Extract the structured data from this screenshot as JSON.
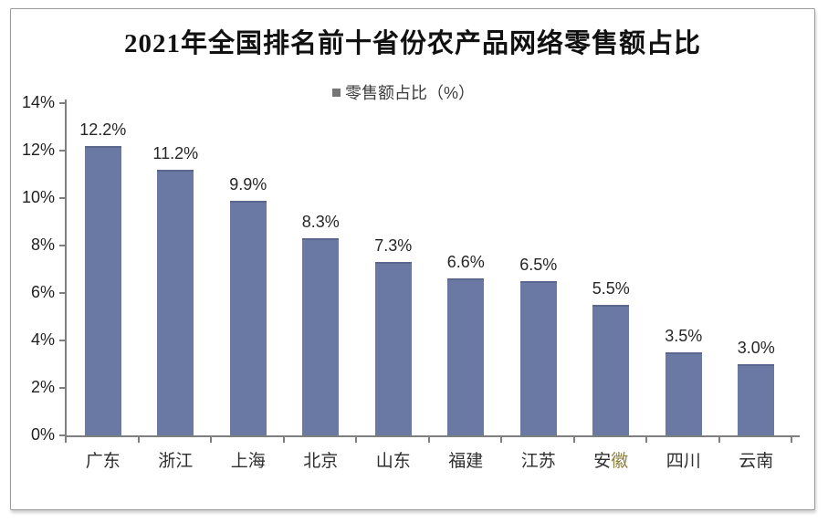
{
  "chart_data": {
    "type": "bar",
    "title": "2021年全国排名前十省份农产品网络零售额占比",
    "legend": "零售额占比（%）",
    "legend_position": "top-center",
    "grid": false,
    "categories": [
      "广东",
      "浙江",
      "上海",
      "北京",
      "山东",
      "福建",
      "江苏",
      "安徽",
      "四川",
      "云南"
    ],
    "values": [
      12.2,
      11.2,
      9.9,
      8.3,
      7.3,
      6.6,
      6.5,
      5.5,
      3.5,
      3.0
    ],
    "value_labels": [
      "12.2%",
      "11.2%",
      "9.9%",
      "8.3%",
      "7.3%",
      "6.6%",
      "6.5%",
      "5.5%",
      "3.5%",
      "3.0%"
    ],
    "xlabel": "",
    "ylabel": "",
    "ylim": [
      0,
      14
    ],
    "y_ticks": [
      "0%",
      "2%",
      "4%",
      "6%",
      "8%",
      "10%",
      "12%",
      "14%"
    ],
    "colors": {
      "bar": "#6A78A4",
      "bar_top_edge": "#5B678C",
      "axis": "#7F7F7F",
      "text": "#262626",
      "legend_swatch": "#757575",
      "frame_border": "#9A9A9A",
      "anhui_tinted_char": "#8A7F3D"
    },
    "watermark_tint": {
      "category_index": 7,
      "char_index": 1
    }
  }
}
